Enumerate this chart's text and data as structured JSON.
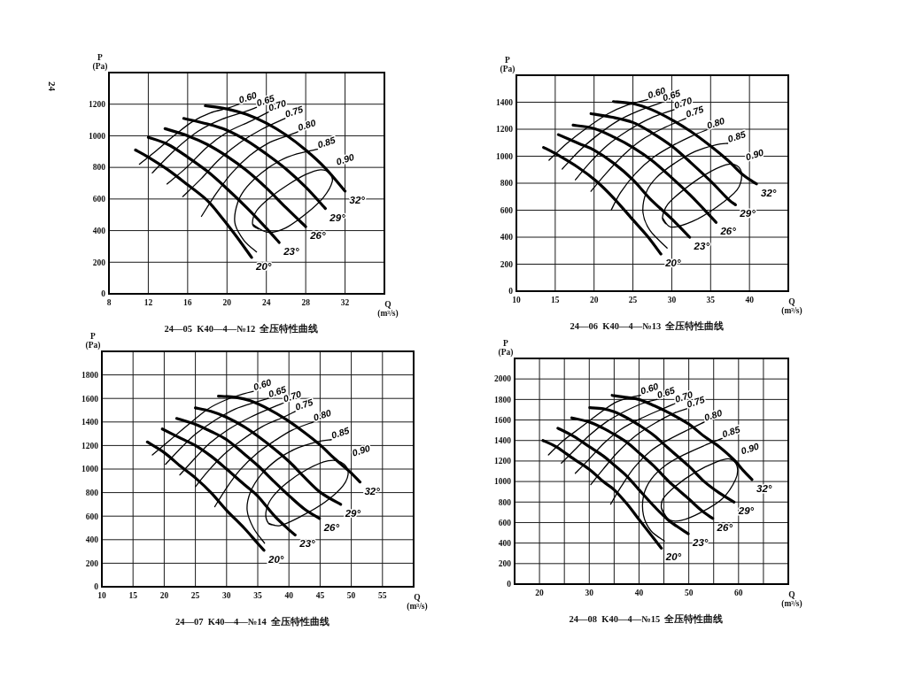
{
  "chart_data": [
    {
      "type": "line",
      "title": "24—05  K40—4—№12  全压特性曲线",
      "xlabel": "Q\n(m³/s)",
      "ylabel": "P\n(Pa)",
      "xlim": [
        8,
        36
      ],
      "xticks": [
        8,
        12,
        16,
        20,
        24,
        28,
        32
      ],
      "ylim": [
        0,
        1400
      ],
      "yticks": [
        0,
        200,
        400,
        600,
        800,
        1000,
        1200
      ],
      "grid": true,
      "line_style": "solid",
      "annotations": [
        "24"
      ],
      "series": [
        {
          "name": "20°",
          "color": "#000000",
          "x": [
            10.7,
            12,
            14,
            16,
            18,
            19.5,
            21,
            22.5
          ],
          "values": [
            910,
            865,
            785,
            690,
            590,
            480,
            360,
            230
          ]
        },
        {
          "name": "23°",
          "color": "#000000",
          "x": [
            12,
            14,
            16,
            18,
            20,
            22,
            24,
            25.3
          ],
          "values": [
            990,
            945,
            865,
            775,
            665,
            545,
            415,
            325
          ]
        },
        {
          "name": "26°",
          "color": "#000000",
          "x": [
            13.7,
            16,
            18,
            20,
            22,
            24,
            26,
            28
          ],
          "values": [
            1045,
            1000,
            945,
            870,
            780,
            670,
            545,
            425
          ]
        },
        {
          "name": "29°",
          "color": "#000000",
          "x": [
            15.6,
            18,
            20,
            22,
            24,
            26,
            28,
            30
          ],
          "values": [
            1110,
            1075,
            1035,
            970,
            885,
            790,
            675,
            540
          ]
        },
        {
          "name": "32°",
          "color": "#000000",
          "x": [
            17.8,
            20,
            22,
            24,
            26,
            28,
            30,
            32
          ],
          "values": [
            1190,
            1170,
            1135,
            1080,
            1005,
            910,
            795,
            650
          ]
        },
        {
          "name": "0.60",
          "color": "#000000",
          "x": [
            11.1,
            12.9,
            14.7,
            16.5,
            18.3,
            20.1,
            21.2
          ],
          "values": [
            820,
            910,
            1005,
            1090,
            1145,
            1175,
            1200
          ]
        },
        {
          "name": "0.65",
          "color": "#000000",
          "x": [
            12.4,
            14.7,
            17.1,
            19.5,
            21.7,
            23
          ],
          "values": [
            765,
            910,
            1030,
            1105,
            1150,
            1180
          ]
        },
        {
          "name": "0.70",
          "color": "#000000",
          "x": [
            13.9,
            15.9,
            18,
            20.1,
            22.3,
            24.2
          ],
          "values": [
            695,
            800,
            930,
            1025,
            1090,
            1150
          ]
        },
        {
          "name": "0.75",
          "color": "#000000",
          "x": [
            15.5,
            17.4,
            19.2,
            21.4,
            23.5,
            25.9
          ],
          "values": [
            615,
            730,
            850,
            960,
            1040,
            1110
          ]
        },
        {
          "name": "0.80",
          "color": "#000000",
          "x": [
            17.4,
            18.9,
            20.5,
            22.3,
            24.1,
            25.9,
            27.2
          ],
          "values": [
            490,
            635,
            765,
            875,
            950,
            995,
            1025
          ]
        },
        {
          "name": "0.85",
          "color": "#000000",
          "x": [
            23,
            21.7,
            20.8,
            21.1,
            22,
            23.5,
            25.3,
            27.1,
            29.2
          ],
          "values": [
            265,
            340,
            450,
            580,
            675,
            765,
            840,
            885,
            915
          ]
        },
        {
          "name": "0.90",
          "color": "#000000",
          "x": [
            22.6,
            24.1,
            25.9,
            28,
            29.8,
            30.7,
            30.4,
            29.5,
            28,
            26.2,
            24.4,
            23,
            22.6,
            23.2
          ],
          "values": [
            440,
            390,
            415,
            505,
            610,
            710,
            765,
            785,
            755,
            690,
            610,
            525,
            440,
            410
          ]
        }
      ]
    },
    {
      "type": "line",
      "title": "24—06  K40—4—№13  全压特性曲线",
      "xlabel": "Q\n(m³/s)",
      "ylabel": "P\n(Pa)",
      "xlim": [
        10,
        45
      ],
      "xticks": [
        10,
        15,
        20,
        25,
        30,
        35,
        40
      ],
      "ylim": [
        0,
        1600
      ],
      "yticks": [
        0,
        200,
        400,
        600,
        800,
        1000,
        1200,
        1400
      ],
      "grid": true,
      "line_style": "solid",
      "series": [
        {
          "name": "20°",
          "color": "#000000",
          "x": [
            13.5,
            15,
            18,
            20.3,
            22.6,
            24.9,
            26.9,
            28.6
          ],
          "values": [
            1065,
            1020,
            915,
            815,
            685,
            535,
            405,
            275
          ]
        },
        {
          "name": "23°",
          "color": "#000000",
          "x": [
            15.4,
            18,
            20,
            22.6,
            25,
            27.2,
            30,
            32.3
          ],
          "values": [
            1160,
            1095,
            1045,
            945,
            825,
            685,
            535,
            400
          ]
        },
        {
          "name": "26°",
          "color": "#000000",
          "x": [
            17.3,
            20,
            22.6,
            25,
            27.4,
            30,
            32.4,
            34.9,
            35.7
          ],
          "values": [
            1230,
            1205,
            1140,
            1065,
            970,
            840,
            710,
            560,
            510
          ]
        },
        {
          "name": "29°",
          "color": "#000000",
          "x": [
            19.6,
            22.2,
            25,
            27.4,
            30,
            32.4,
            35,
            37.2,
            38.2
          ],
          "values": [
            1315,
            1290,
            1250,
            1175,
            1075,
            955,
            815,
            685,
            640
          ]
        },
        {
          "name": "32°",
          "color": "#000000",
          "x": [
            22.5,
            25,
            27.4,
            30,
            32.4,
            35,
            37.2,
            39.2,
            40.9
          ],
          "values": [
            1405,
            1390,
            1345,
            1270,
            1185,
            1075,
            970,
            860,
            795
          ]
        },
        {
          "name": "0.60",
          "color": "#000000",
          "x": [
            14.2,
            16.5,
            19.2,
            21.8,
            24.3,
            26.9
          ],
          "values": [
            970,
            1095,
            1215,
            1315,
            1380,
            1420
          ]
        },
        {
          "name": "0.65",
          "color": "#000000",
          "x": [
            15.9,
            18,
            20.3,
            23,
            25.7,
            28.8
          ],
          "values": [
            905,
            1035,
            1150,
            1260,
            1335,
            1400
          ]
        },
        {
          "name": "0.70",
          "color": "#000000",
          "x": [
            17.6,
            19.5,
            21.8,
            24.5,
            27.2,
            30.3
          ],
          "values": [
            825,
            955,
            1085,
            1195,
            1280,
            1345
          ]
        },
        {
          "name": "0.75",
          "color": "#000000",
          "x": [
            19.6,
            21.5,
            23.8,
            26.1,
            28.8,
            31.8
          ],
          "values": [
            740,
            870,
            1010,
            1120,
            1205,
            1280
          ]
        },
        {
          "name": "0.80",
          "color": "#000000",
          "x": [
            22.2,
            23.4,
            25.3,
            27.6,
            30,
            32.6,
            34.5
          ],
          "values": [
            600,
            730,
            870,
            990,
            1075,
            1150,
            1195
          ]
        },
        {
          "name": "0.85",
          "color": "#000000",
          "x": [
            29.4,
            27.2,
            26.3,
            26.7,
            28,
            30.3,
            33,
            35.7,
            37.2
          ],
          "values": [
            320,
            450,
            580,
            730,
            840,
            945,
            1035,
            1085,
            1095
          ]
        },
        {
          "name": "0.90",
          "color": "#000000",
          "x": [
            28.8,
            29.9,
            32.6,
            35.7,
            38.4,
            39,
            38.4,
            36.9,
            34.2,
            31.5,
            29.5,
            28.8,
            29.2
          ],
          "values": [
            545,
            475,
            515,
            620,
            750,
            860,
            930,
            935,
            860,
            750,
            645,
            545,
            500
          ]
        }
      ]
    },
    {
      "type": "line",
      "title": "24—07  K40—4—№14  全压特性曲线",
      "xlabel": "Q\n(m³/s)",
      "ylabel": "P\n(Pa)",
      "xlim": [
        10,
        60
      ],
      "xticks": [
        10,
        15,
        20,
        25,
        30,
        35,
        40,
        45,
        50,
        55
      ],
      "ylim": [
        0,
        2000
      ],
      "yticks": [
        0,
        200,
        400,
        600,
        800,
        1000,
        1200,
        1400,
        1600,
        1800
      ],
      "grid": true,
      "line_style": "solid",
      "series": [
        {
          "name": "20°",
          "color": "#000000",
          "x": [
            17.3,
            20,
            22.7,
            25.1,
            27.5,
            30,
            32.8,
            34.8,
            36
          ],
          "values": [
            1230,
            1140,
            1020,
            920,
            800,
            650,
            500,
            380,
            310
          ]
        },
        {
          "name": "23°",
          "color": "#000000",
          "x": [
            19.7,
            22.7,
            25,
            27.5,
            30,
            32.8,
            35,
            37.7,
            40.1,
            41
          ],
          "values": [
            1340,
            1260,
            1200,
            1110,
            1000,
            870,
            770,
            600,
            480,
            440
          ]
        },
        {
          "name": "26°",
          "color": "#000000",
          "x": [
            22,
            25,
            27.5,
            30,
            32.8,
            35,
            37.7,
            40.1,
            42.5,
            44.9
          ],
          "values": [
            1430,
            1380,
            1320,
            1250,
            1130,
            1030,
            890,
            770,
            660,
            580
          ]
        },
        {
          "name": "29°",
          "color": "#000000",
          "x": [
            25,
            27.5,
            30,
            32.8,
            35,
            37.7,
            40.1,
            42.5,
            45.1,
            48.3
          ],
          "values": [
            1520,
            1490,
            1440,
            1360,
            1280,
            1170,
            1060,
            930,
            800,
            700
          ]
        },
        {
          "name": "32°",
          "color": "#000000",
          "x": [
            28.7,
            31.4,
            33.8,
            36.7,
            39.6,
            42.5,
            45.1,
            47.3,
            49.7,
            51.4
          ],
          "values": [
            1620,
            1610,
            1580,
            1510,
            1420,
            1310,
            1200,
            1090,
            980,
            890
          ]
        },
        {
          "name": "0.60",
          "color": "#000000",
          "x": [
            18.1,
            20.8,
            23.7,
            27,
            30,
            32.8,
            34.3
          ],
          "values": [
            1120,
            1240,
            1370,
            1510,
            1590,
            1640,
            1660
          ]
        },
        {
          "name": "0.65",
          "color": "#000000",
          "x": [
            20.2,
            22.7,
            25.1,
            28,
            31.4,
            34.8,
            36.7
          ],
          "values": [
            1040,
            1180,
            1300,
            1410,
            1510,
            1570,
            1600
          ]
        },
        {
          "name": "0.70",
          "color": "#000000",
          "x": [
            22.5,
            24.9,
            27.3,
            30.4,
            33.8,
            37.2,
            39.1
          ],
          "values": [
            950,
            1090,
            1220,
            1340,
            1440,
            1520,
            1560
          ]
        },
        {
          "name": "0.75",
          "color": "#000000",
          "x": [
            25,
            27,
            29.5,
            32.3,
            35.7,
            39.1,
            41
          ],
          "values": [
            850,
            980,
            1120,
            1240,
            1360,
            1440,
            1490
          ]
        },
        {
          "name": "0.80",
          "color": "#000000",
          "x": [
            28.1,
            30,
            32.1,
            34.8,
            37.7,
            40.5,
            43.9
          ],
          "values": [
            680,
            840,
            990,
            1130,
            1240,
            1330,
            1400
          ]
        },
        {
          "name": "0.85",
          "color": "#000000",
          "x": [
            36.1,
            34.3,
            33.3,
            33.8,
            35.5,
            38.1,
            41,
            44.4,
            46.8
          ],
          "values": [
            370,
            500,
            650,
            800,
            950,
            1080,
            1170,
            1230,
            1250
          ]
        },
        {
          "name": "0.90",
          "color": "#000000",
          "x": [
            36.7,
            38.6,
            42,
            45.8,
            48.7,
            49.5,
            48.3,
            46.3,
            43,
            39.6,
            37.2,
            36.3,
            36.7,
            37.6
          ],
          "values": [
            540,
            520,
            600,
            720,
            860,
            980,
            1060,
            1070,
            1000,
            880,
            750,
            630,
            540,
            525
          ]
        }
      ]
    },
    {
      "type": "line",
      "title": "24—08  K40—4—№15  全压特性曲线",
      "xlabel": "Q\n(m³/s)",
      "ylabel": "P\n(Pa)",
      "xlim": [
        15,
        70
      ],
      "xticks": [
        20,
        {
          "value": 25,
          "label": null
        },
        30,
        {
          "value": 35,
          "label": null
        },
        40,
        {
          "value": 45,
          "label": null
        },
        50,
        {
          "value": 55,
          "label": null
        },
        60,
        {
          "value": 65,
          "label": null
        }
      ],
      "ylim": [
        0,
        2200
      ],
      "yticks": [
        0,
        200,
        400,
        600,
        800,
        1000,
        1200,
        1400,
        1600,
        1800,
        2000
      ],
      "grid": true,
      "line_style": "solid",
      "series": [
        {
          "name": "20°",
          "color": "#000000",
          "x": [
            20.7,
            23.3,
            26.9,
            30,
            32.8,
            35,
            37.6,
            40,
            42.4,
            44.5
          ],
          "values": [
            1400,
            1340,
            1220,
            1120,
            1000,
            920,
            780,
            630,
            480,
            350
          ]
        },
        {
          "name": "23°",
          "color": "#000000",
          "x": [
            23.7,
            26.9,
            30,
            32.8,
            35,
            37.6,
            40,
            43,
            46,
            49.9
          ],
          "values": [
            1520,
            1440,
            1340,
            1250,
            1160,
            1050,
            920,
            760,
            620,
            490
          ]
        },
        {
          "name": "26°",
          "color": "#000000",
          "x": [
            26.5,
            30,
            32.8,
            35,
            37.6,
            40,
            43,
            46,
            50,
            52.5,
            54.8
          ],
          "values": [
            1620,
            1580,
            1520,
            1460,
            1380,
            1280,
            1150,
            1000,
            830,
            720,
            640
          ]
        },
        {
          "name": "29°",
          "color": "#000000",
          "x": [
            30.1,
            32.8,
            35,
            37.6,
            40,
            43,
            46,
            50,
            53.1,
            56.1,
            59.1
          ],
          "values": [
            1720,
            1710,
            1680,
            1620,
            1550,
            1450,
            1320,
            1150,
            1000,
            890,
            800
          ]
        },
        {
          "name": "32°",
          "color": "#000000",
          "x": [
            34.6,
            37.6,
            40,
            43,
            46,
            50,
            53.1,
            56.1,
            59.1,
            60.9,
            62.7
          ],
          "values": [
            1840,
            1820,
            1800,
            1740,
            1670,
            1560,
            1440,
            1340,
            1210,
            1110,
            1020
          ]
        },
        {
          "name": "0.60",
          "color": "#000000",
          "x": [
            21.8,
            24.8,
            28.1,
            31.6,
            35.2,
            38.2,
            40.3
          ],
          "values": [
            1260,
            1400,
            1520,
            1650,
            1770,
            1820,
            1840
          ]
        },
        {
          "name": "0.65",
          "color": "#000000",
          "x": [
            24.4,
            26.9,
            30,
            33.4,
            37,
            40.6,
            43.6
          ],
          "values": [
            1180,
            1300,
            1450,
            1580,
            1680,
            1760,
            1800
          ]
        },
        {
          "name": "0.70",
          "color": "#000000",
          "x": [
            27.2,
            30,
            33.1,
            36.4,
            40.6,
            44.8,
            47.2
          ],
          "values": [
            1080,
            1220,
            1380,
            1510,
            1620,
            1710,
            1760
          ]
        },
        {
          "name": "0.75",
          "color": "#000000",
          "x": [
            30.3,
            32.8,
            35.8,
            39.4,
            43.6,
            47.2,
            49.6
          ],
          "values": [
            970,
            1120,
            1290,
            1450,
            1580,
            1670,
            1710
          ]
        },
        {
          "name": "0.80",
          "color": "#000000",
          "x": [
            34.3,
            36.4,
            39.1,
            42.4,
            46,
            50.1,
            53.1
          ],
          "values": [
            780,
            950,
            1140,
            1300,
            1410,
            1510,
            1580
          ]
        },
        {
          "name": "0.85",
          "color": "#000000",
          "x": [
            45.1,
            42.4,
            40.9,
            40.9,
            42.4,
            45.4,
            49,
            53.1,
            56.7
          ],
          "values": [
            420,
            520,
            670,
            860,
            1020,
            1160,
            1260,
            1350,
            1420
          ]
        },
        {
          "name": "0.90",
          "color": "#000000",
          "x": [
            44.5,
            46,
            48.4,
            52.5,
            56.7,
            59.4,
            59.7,
            58.2,
            55.5,
            51.3,
            47.2,
            44.8,
            44.5,
            45.1
          ],
          "values": [
            740,
            630,
            620,
            700,
            830,
            1020,
            1150,
            1220,
            1190,
            1090,
            950,
            830,
            740,
            680
          ]
        }
      ]
    }
  ]
}
